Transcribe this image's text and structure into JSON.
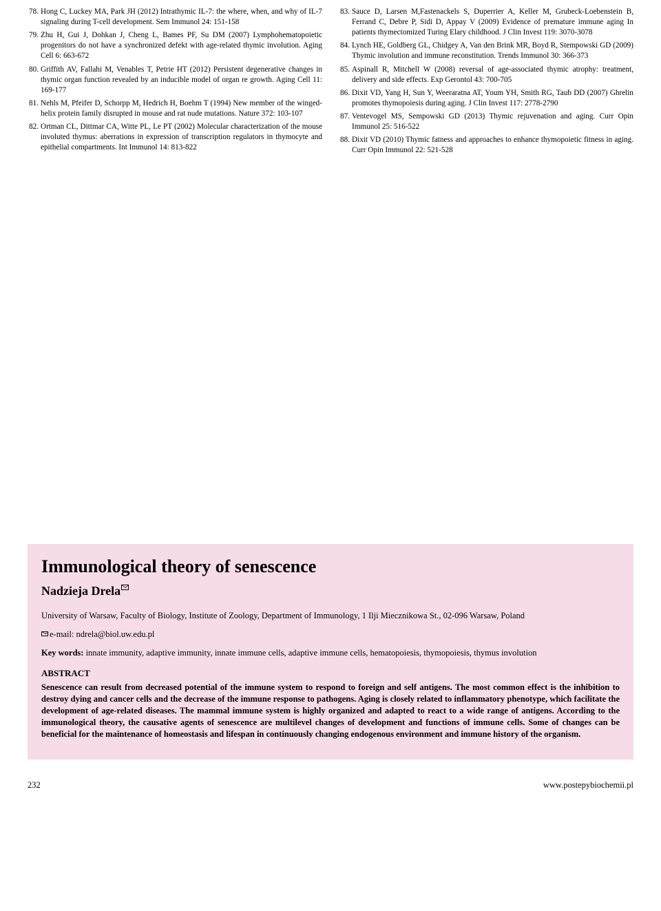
{
  "references": {
    "left": [
      {
        "num": "78.",
        "text": "Hong C, Luckey MA, Park JH (2012) Intrathymic IL-7: the where, when, and why of IL-7 signaling during T-cell development. Sem Immunol 24: 151-158"
      },
      {
        "num": "79.",
        "text": "Zhu H, Gui J, Dohkan J, Cheng L, Bames PF, Su DM (2007) Lymphohematopoietic progenitors do not have a synchronized defekt with age-related thymic involution. Aging Cell 6: 663-672"
      },
      {
        "num": "80.",
        "text": "Griffith AV, Fallahi M, Venables T, Petrie HT (2012) Persistent degenerative changes in thymic organ function revealed by an inducible model of organ re growth. Aging Cell 11: 169-177"
      },
      {
        "num": "81.",
        "text": "Nehls M, Pfeifer D, Schorpp M, Hedrich H, Boehm T (1994) New member of the winged-helix protein family disrupted in mouse and rat nude mutations. Nature 372: 103-107"
      },
      {
        "num": "82.",
        "text": "Ortman CL, Dittmar CA, Witte PL, Le PT (2002) Molecular characterization of the mouse involuted thymus: aberrations in expression of transcription regulators in thymocyte and epithelial compartments. Int Immunol 14: 813-822"
      }
    ],
    "right": [
      {
        "num": "83.",
        "text": "Sauce D, Larsen M,Fastenackels S, Duperrier A, Keller M, Grubeck-Loebenstein B, Ferrand C, Debre P, Sidi D, Appay V (2009) Evidence of premature immune aging In patients thymectomized Turing Elary childhood. J Clin Invest 119: 3070-3078"
      },
      {
        "num": "84.",
        "text": "Lynch HE, Goldberg GL, Chidgey A, Van den Brink MR, Boyd R, Stempowski GD (2009) Thymic involution and immune reconstitution. Trends Immunol 30: 366-373"
      },
      {
        "num": "85.",
        "text": "Aspinall R, Mitchell W (2008) reversal of age-associated thymic atrophy: treatment, delivery and side effects. Exp Gerontol 43: 700-705"
      },
      {
        "num": "86.",
        "text": "Dixit VD, Yang H, Sun Y, Weeraratna AT, Youm YH, Smith RG, Taub DD (2007) Ghrelin promotes thymopoiesis during aging. J Clin Invest 117: 2778-2790"
      },
      {
        "num": "87.",
        "text": "Ventevogel MS, Sempowski GD (2013) Thymic rejuvenation and aging. Curr Opin Immunol 25: 516-522"
      },
      {
        "num": "88.",
        "text": "Dixit VD (2010) Thymic fatness and approaches to enhance thymopoietic fitness in aging. Curr Opin Immunol 22: 521-528"
      }
    ]
  },
  "abstract": {
    "title": "Immunological theory of senescence",
    "author": "Nadzieja Drela",
    "affiliation": "University of Warsaw, Faculty of Biology, Institute of Zoology, Department of Immunology, 1 Ilji Miecznikowa St., 02-096 Warsaw, Poland",
    "email_label": "e-mail: ndrela@biol.uw.edu.pl",
    "keywords_label": "Key words:",
    "keywords": " innate immunity, adaptive immunity, innate immune cells, adaptive immune cells, hematopoiesis, thymopoiesis, thymus involution",
    "heading": "ABSTRACT",
    "body": "Senescence can result from decreased potential of the immune system to respond to foreign and self antigens. The most common effect is the inhibition to destroy dying and cancer cells and the decrease of the immune response to pathogens. Aging is closely related to inflammatory phenotype, which facilitate the development of age-related diseases. The mammal immune system is highly organized and adapted to react to a wide range of antigens. According to the immunological theory, the causative agents of senescence are multilevel changes of development and functions of immune cells. Some of changes can be beneficial for the maintenance of homeostasis and lifespan in continuously changing endogenous environment and immune history of the organism."
  },
  "footer": {
    "page": "232",
    "url": "www.postepybiochemii.pl"
  }
}
